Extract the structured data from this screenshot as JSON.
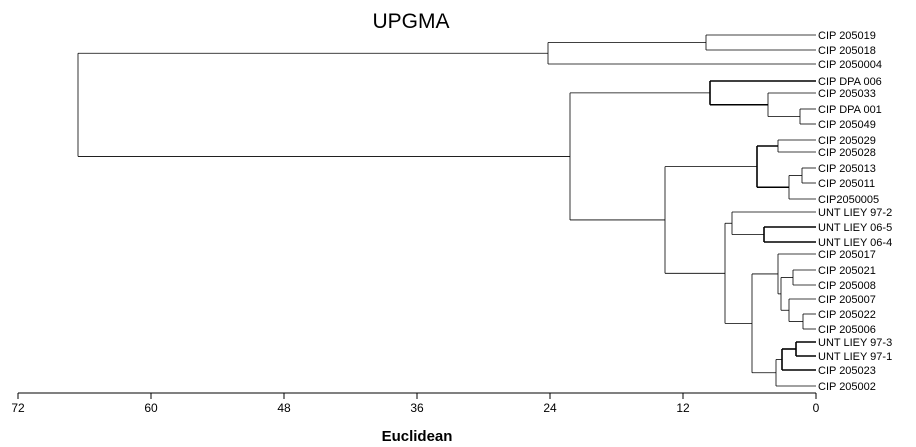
{
  "figure": {
    "title": "UPGMA",
    "axis": {
      "label": "Euclidean",
      "ticks": [
        "72",
        "60",
        "48",
        "36",
        "24",
        "12",
        "0"
      ]
    },
    "leaves": [
      "CIP 205019",
      "CIP 205018",
      "CIP 2050004",
      "CIP DPA 006",
      "CIP 205033",
      "CIP DPA 001",
      "CIP 205049",
      "CIP 205029",
      "CIP 205028",
      "CIP 205013",
      "CIP 205011",
      "CIP2050005",
      "UNT LIEY 97-2",
      "UNT LIEY 06-5",
      "UNT LIEY 06-4",
      "CIP 205017",
      "CIP 205021",
      "CIP 205008",
      "CIP 205007",
      "CIP 205022",
      "CIP 205006",
      "UNT LIEY 97-3",
      "UNT LIEY 97-1",
      "CIP 205023",
      "CIP 205002"
    ]
  }
}
